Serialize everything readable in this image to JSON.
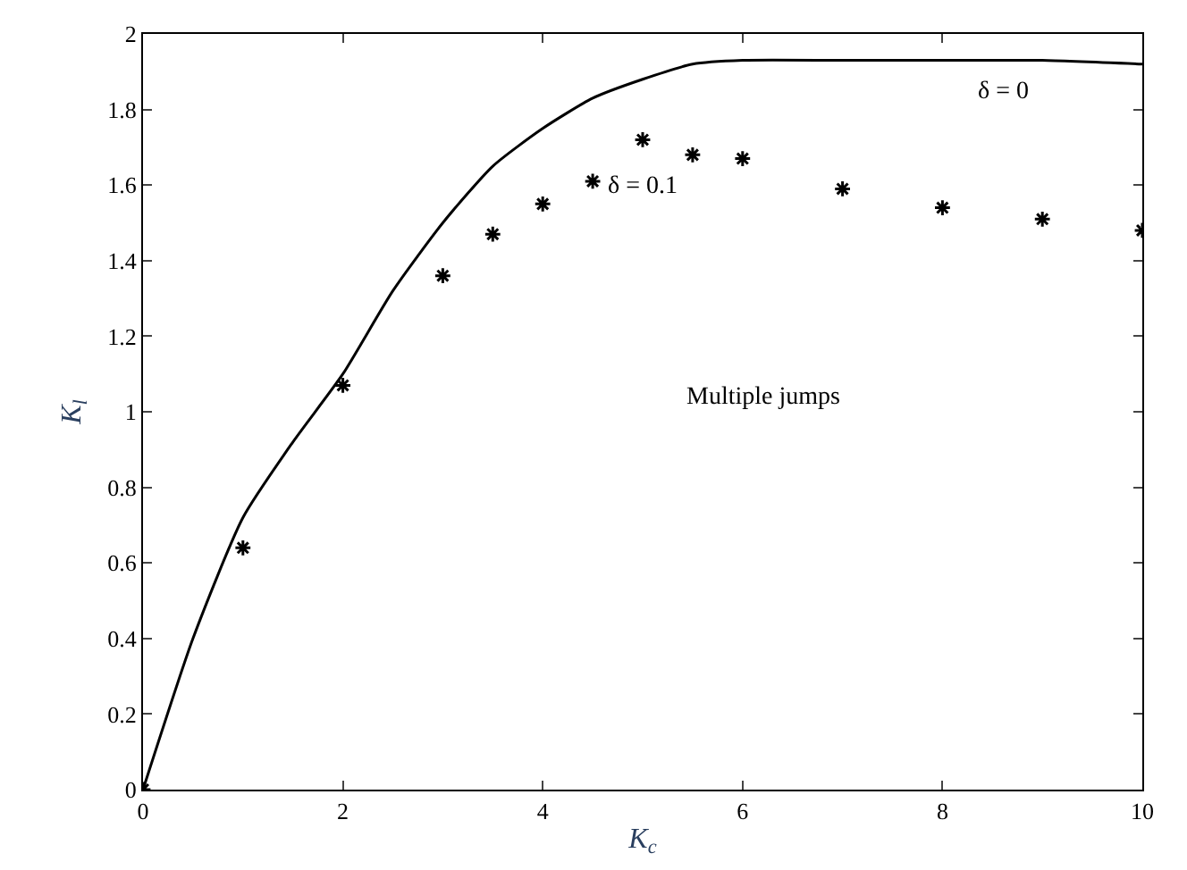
{
  "chart_data": {
    "type": "line",
    "xlabel": "K$_{c}$",
    "ylabel": "K$_{l}$",
    "xlim": [
      0,
      10
    ],
    "ylim": [
      0,
      2
    ],
    "xticks": [
      0,
      2,
      4,
      6,
      8,
      10
    ],
    "yticks": [
      0,
      0.2,
      0.4,
      0.6,
      0.8,
      1,
      1.2,
      1.4,
      1.6,
      1.8,
      2
    ],
    "series": [
      {
        "color": "#000000",
        "marker": "none",
        "line_style": "solid",
        "x": [
          0,
          0.5,
          1,
          1.5,
          2,
          2.5,
          3,
          3.5,
          4,
          4.5,
          5,
          5.5,
          6,
          7,
          8,
          9,
          10
        ],
        "values": [
          0,
          0.4,
          0.72,
          0.92,
          1.1,
          1.32,
          1.5,
          1.65,
          1.75,
          1.83,
          1.88,
          1.92,
          1.93,
          1.93,
          1.93,
          1.93,
          1.92
        ]
      },
      {
        "type": "scatter",
        "color": "#000000",
        "marker": "cross",
        "x": [
          0,
          1,
          2,
          3,
          3.5,
          4,
          4.5,
          5,
          5.5,
          6,
          7,
          8,
          9,
          10
        ],
        "values": [
          0,
          0.64,
          1.07,
          1.36,
          1.47,
          1.55,
          1.61,
          1.72,
          1.68,
          1.67,
          1.59,
          1.54,
          1.51,
          1.48
        ]
      }
    ],
    "annotations": [
      "δ = 0",
      "δ = 0.1",
      "Multiple jumps"
    ]
  }
}
